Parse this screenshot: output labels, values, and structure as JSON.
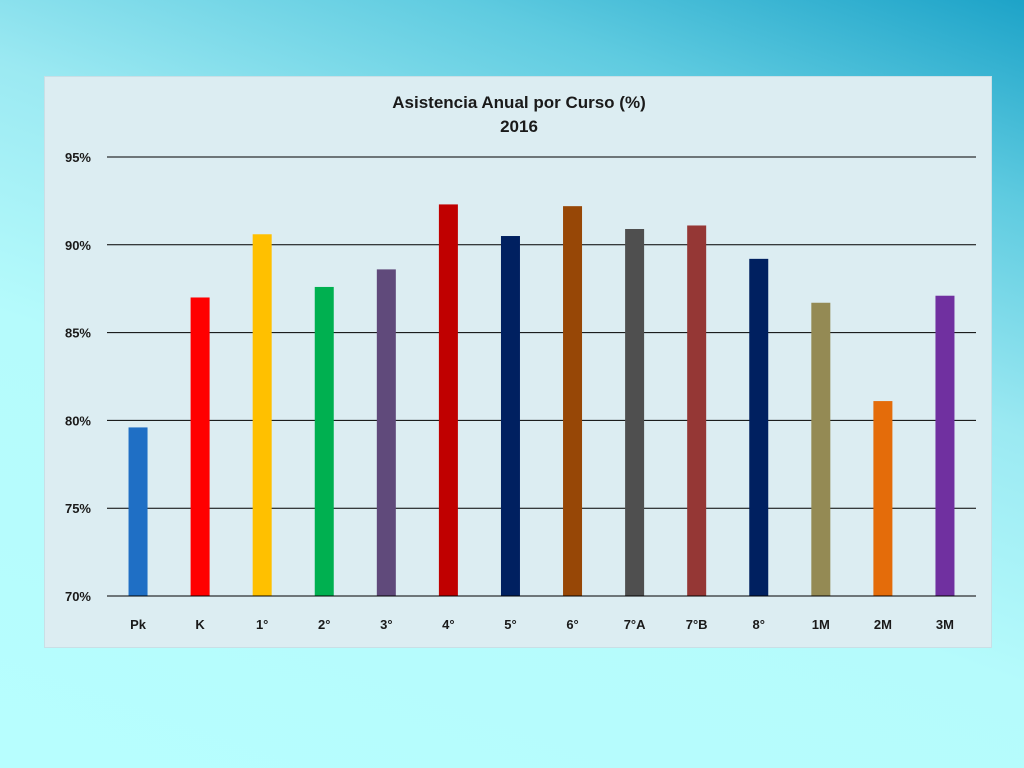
{
  "chart_data": {
    "type": "bar",
    "title": "Asistencia Anual por Curso (%)",
    "subtitle": "2016",
    "xlabel": "",
    "ylabel": "",
    "ylim": [
      70,
      95
    ],
    "y_ticks": [
      "70%",
      "75%",
      "80%",
      "85%",
      "90%",
      "95%"
    ],
    "y_tick_values": [
      70,
      75,
      80,
      85,
      90,
      95
    ],
    "grid": true,
    "legend": "none",
    "categories": [
      "Pk",
      "K",
      "1°",
      "2°",
      "3°",
      "4°",
      "5°",
      "6°",
      "7°A",
      "7°B",
      "8°",
      "1M",
      "2M",
      "3M"
    ],
    "values": [
      79.6,
      87.0,
      90.6,
      87.6,
      88.6,
      92.3,
      90.5,
      92.2,
      90.9,
      91.1,
      89.2,
      86.7,
      81.1,
      87.1
    ],
    "colors": [
      "#1f6fc5",
      "#ff0000",
      "#ffc000",
      "#00b050",
      "#604a7b",
      "#c00000",
      "#002060",
      "#974706",
      "#4f4f4f",
      "#953735",
      "#002060",
      "#948a54",
      "#e46c0a",
      "#7030a0"
    ]
  }
}
